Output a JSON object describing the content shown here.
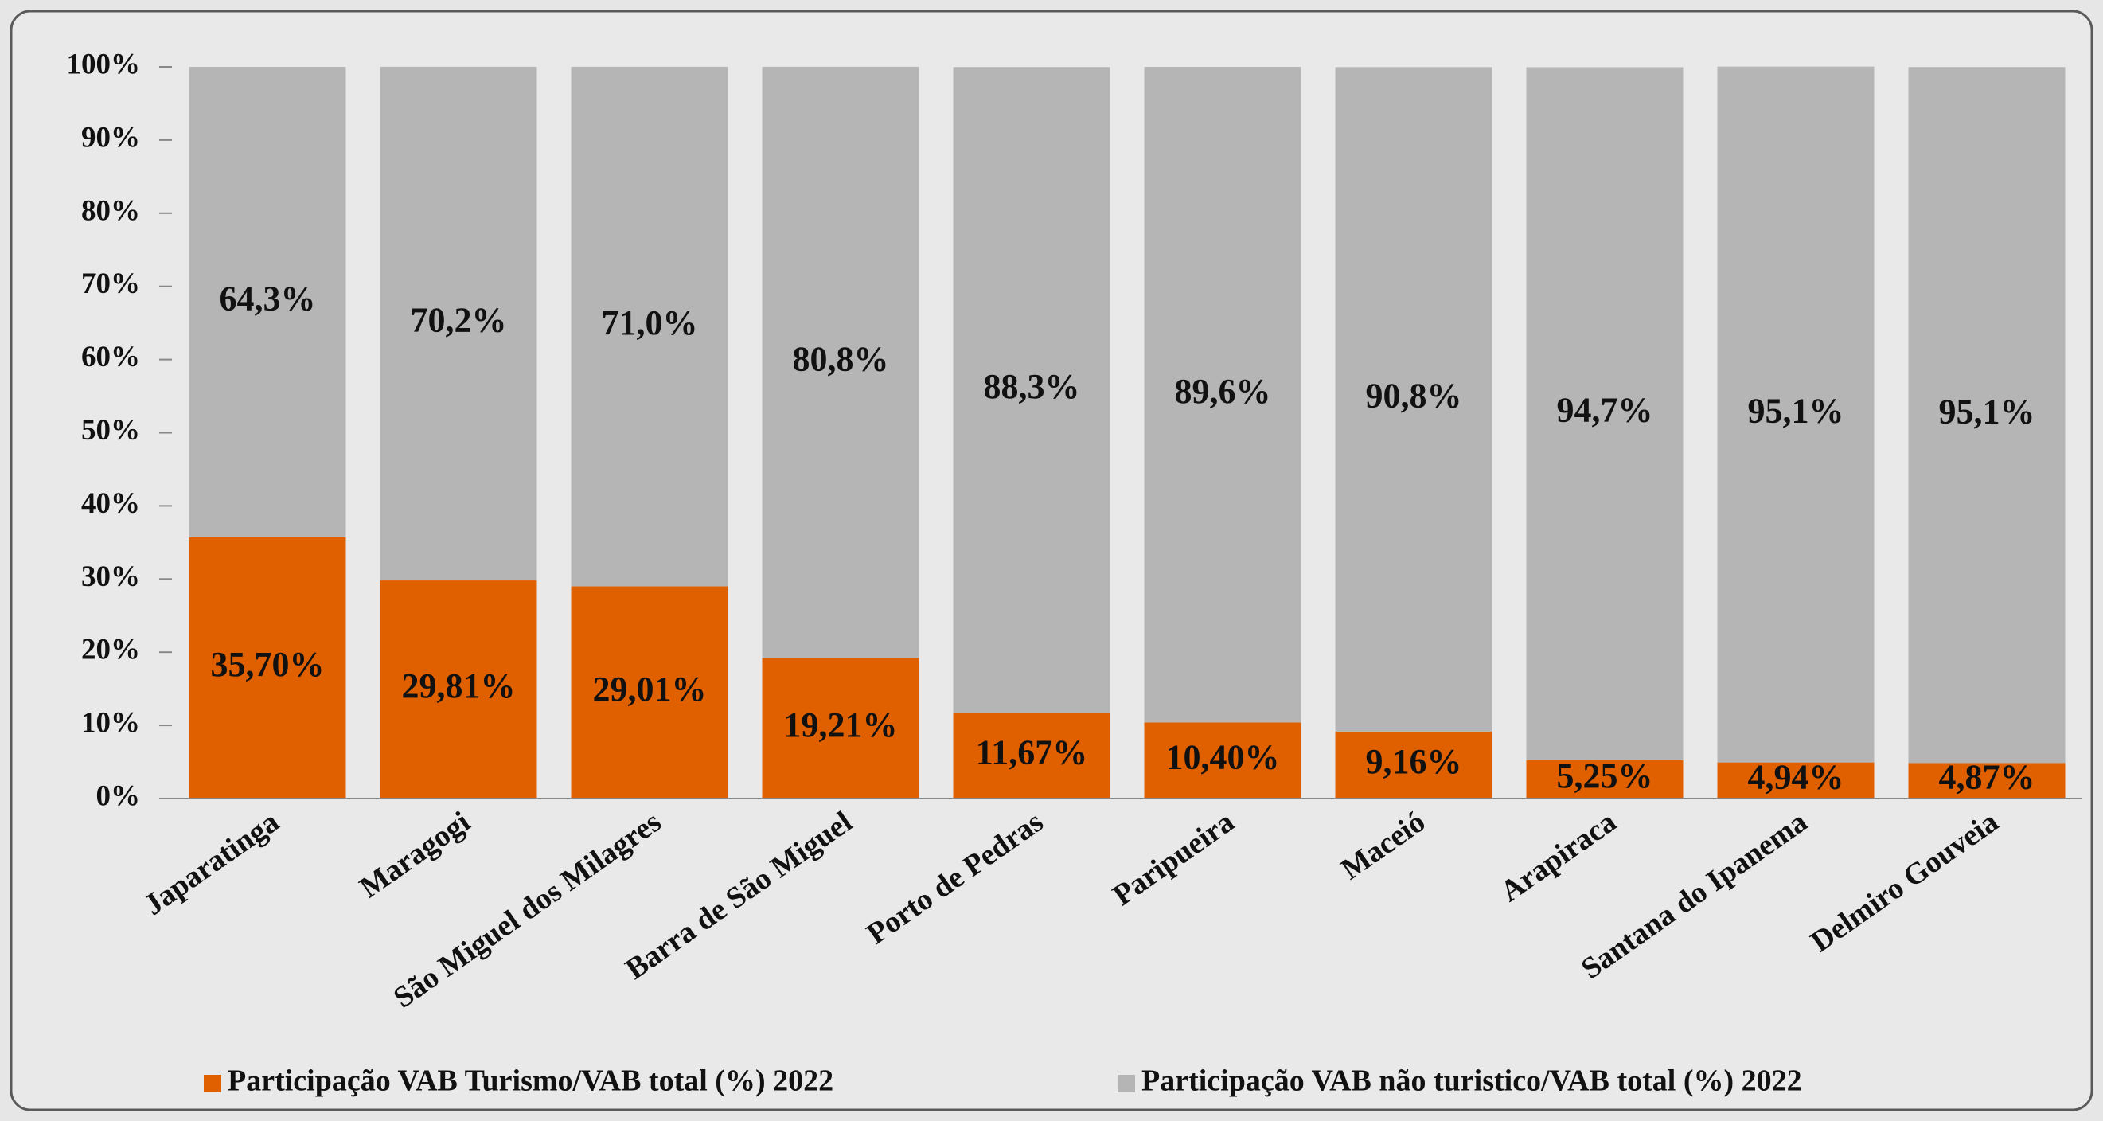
{
  "chart_data": {
    "type": "stacked_bar",
    "categories": [
      "Japaratinga",
      "Maragogi",
      "São Miguel dos Milagres",
      "Barra de São Miguel",
      "Porto de Pedras",
      "Paripueira",
      "Maceió",
      "Arapiraca",
      "Santana do Ipanema",
      "Delmiro Gouveia"
    ],
    "series": [
      {
        "name": "Participação VAB Turismo/VAB total (%) 2022",
        "color": "#e06000",
        "values": [
          35.7,
          29.81,
          29.01,
          19.21,
          11.67,
          10.4,
          9.16,
          5.25,
          4.94,
          4.87
        ],
        "value_labels": [
          "35,70%",
          "29,81%",
          "29,01%",
          "19,21%",
          "11,67%",
          "10,40%",
          "9,16%",
          "5,25%",
          "4,94%",
          "4,87%"
        ]
      },
      {
        "name": "Participação VAB não turistico/VAB total (%) 2022",
        "color": "#b5b5b5",
        "values": [
          64.3,
          70.2,
          71.0,
          80.8,
          88.3,
          89.6,
          90.8,
          94.7,
          95.1,
          95.1
        ],
        "value_labels": [
          "64,3%",
          "70,2%",
          "71,0%",
          "80,8%",
          "88,3%",
          "89,6%",
          "90,8%",
          "94,7%",
          "95,1%",
          "95,1%"
        ]
      }
    ],
    "ylim": [
      0,
      100
    ],
    "yticks": [
      {
        "value": 0,
        "label": "0%"
      },
      {
        "value": 10,
        "label": "10%"
      },
      {
        "value": 20,
        "label": "20%"
      },
      {
        "value": 30,
        "label": "30%"
      },
      {
        "value": 40,
        "label": "40%"
      },
      {
        "value": 50,
        "label": "50%"
      },
      {
        "value": 60,
        "label": "60%"
      },
      {
        "value": 70,
        "label": "70%"
      },
      {
        "value": 80,
        "label": "80%"
      },
      {
        "value": 90,
        "label": "90%"
      },
      {
        "value": 100,
        "label": "100%"
      }
    ],
    "legend": "bottom"
  }
}
